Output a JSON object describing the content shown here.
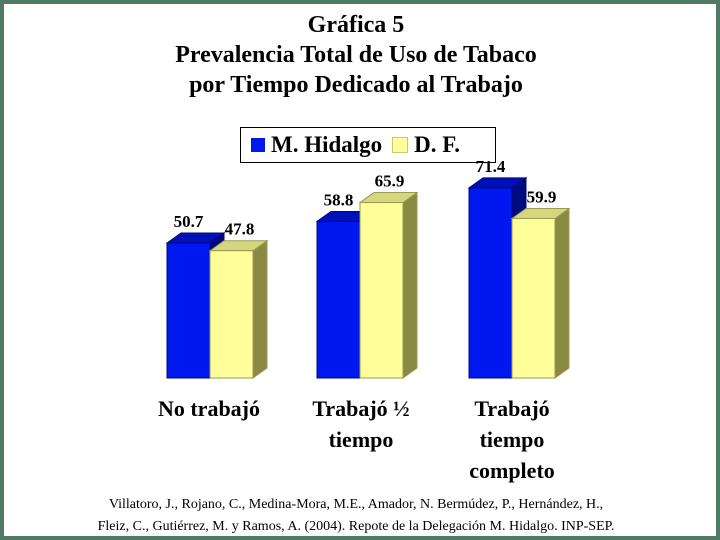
{
  "title_lines": [
    "Gráfica 5",
    "Prevalencia Total de Uso de Tabaco",
    "por Tiempo Dedicado al Trabajo"
  ],
  "legend": [
    "M. Hidalgo",
    "D. F."
  ],
  "colors": {
    "series1": "#0018f0",
    "series2": "#ffff99",
    "frame": "#4f7a66"
  },
  "source_lines": [
    "Villatoro, J., Rojano, C., Medina-Mora, M.E., Amador, N. Bermúdez, P., Hernández, H.,",
    "Fleiz, C., Gutiérrez, M. y Ramos, A. (2004). Repote de la Delegación M. Hidalgo. INP-SEP."
  ],
  "category_lines": [
    [
      "No trabajó"
    ],
    [
      "Trabajó ½",
      "tiempo"
    ],
    [
      "Trabajó",
      "tiempo",
      "completo"
    ]
  ],
  "chart_data": {
    "type": "bar",
    "categories": [
      "No trabajó",
      "Trabajó ½ tiempo",
      "Trabajó tiempo completo"
    ],
    "series": [
      {
        "name": "M. Hidalgo",
        "values": [
          50.7,
          58.8,
          71.4
        ]
      },
      {
        "name": "D. F.",
        "values": [
          47.8,
          65.9,
          59.9
        ]
      }
    ],
    "ylim": [
      0,
      80
    ],
    "grid": false,
    "legend_position": "top"
  }
}
